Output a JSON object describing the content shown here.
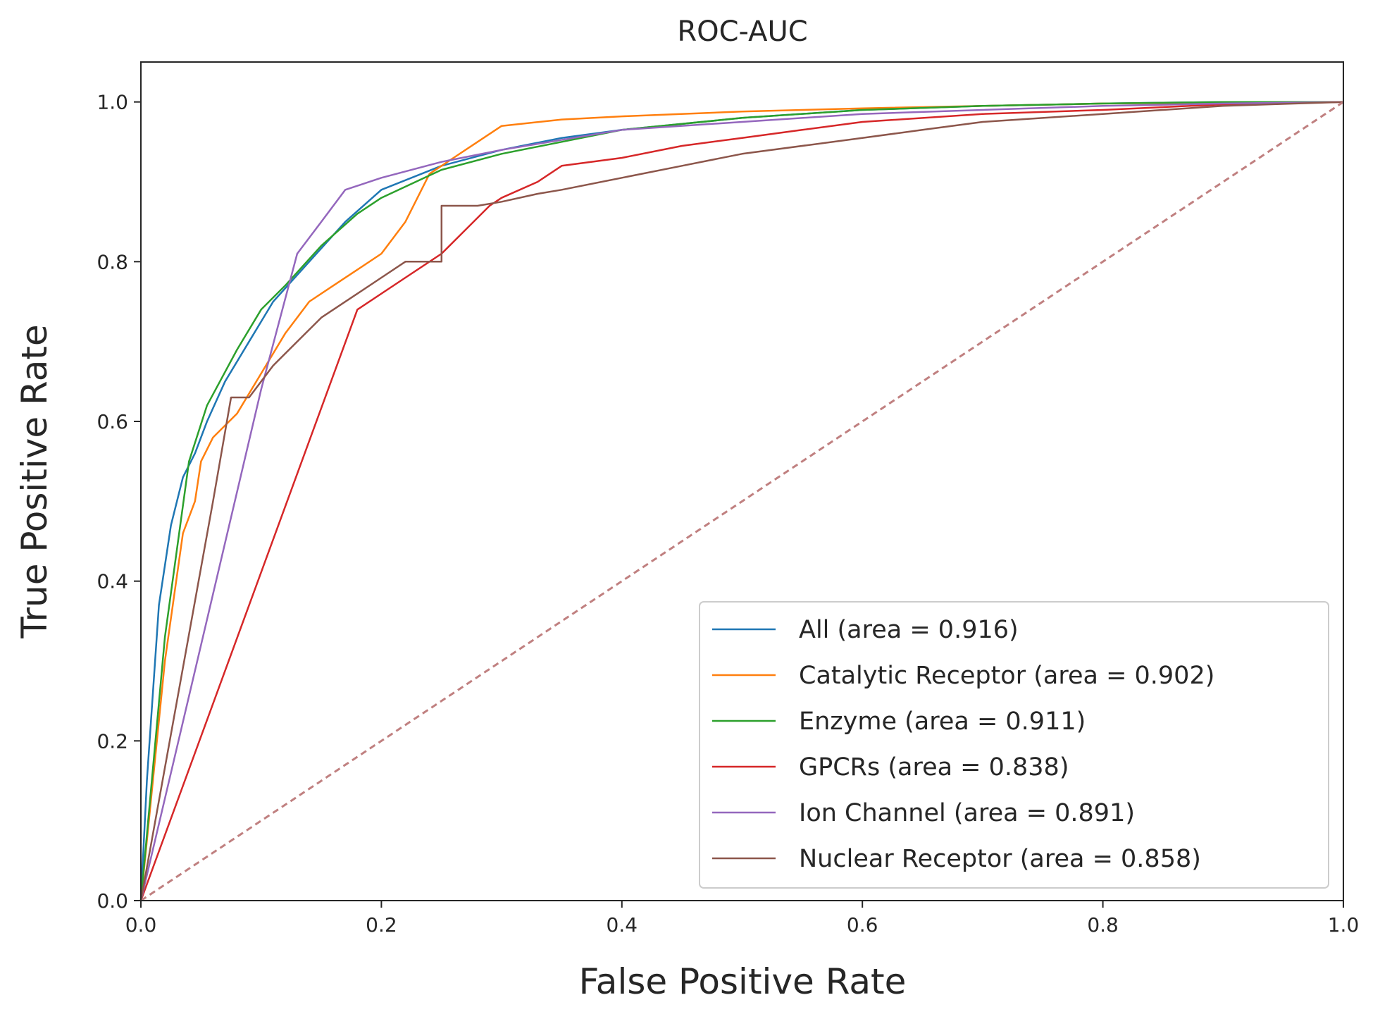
{
  "chart_data": {
    "type": "line",
    "title": "ROC-AUC",
    "xlabel": "False Positive Rate",
    "ylabel": "True Positive Rate",
    "xlim": [
      0.0,
      1.0
    ],
    "ylim": [
      0.0,
      1.05
    ],
    "xticks": [
      0.0,
      0.2,
      0.4,
      0.6,
      0.8,
      1.0
    ],
    "yticks": [
      0.0,
      0.2,
      0.4,
      0.6,
      0.8,
      1.0
    ],
    "xtick_labels": [
      "0.0",
      "0.2",
      "0.4",
      "0.6",
      "0.8",
      "1.0"
    ],
    "ytick_labels": [
      "0.0",
      "0.2",
      "0.4",
      "0.6",
      "0.8",
      "1.0"
    ],
    "grid": false,
    "legend_position": "lower-right",
    "series": [
      {
        "name": "All (area = 0.916)",
        "color": "#1f77b4",
        "x": [
          0.0,
          0.005,
          0.015,
          0.025,
          0.035,
          0.045,
          0.055,
          0.07,
          0.09,
          0.11,
          0.14,
          0.17,
          0.2,
          0.25,
          0.3,
          0.35,
          0.4,
          0.5,
          0.6,
          0.7,
          0.8,
          0.9,
          1.0
        ],
        "y": [
          0.0,
          0.15,
          0.37,
          0.47,
          0.53,
          0.56,
          0.6,
          0.65,
          0.7,
          0.75,
          0.8,
          0.85,
          0.89,
          0.92,
          0.94,
          0.955,
          0.965,
          0.98,
          0.99,
          0.995,
          0.998,
          1.0,
          1.0
        ]
      },
      {
        "name": "Catalytic Receptor (area = 0.902)",
        "color": "#ff7f0e",
        "x": [
          0.0,
          0.02,
          0.035,
          0.045,
          0.05,
          0.06,
          0.08,
          0.1,
          0.12,
          0.14,
          0.16,
          0.18,
          0.2,
          0.22,
          0.24,
          0.26,
          0.28,
          0.3,
          0.35,
          0.4,
          0.5,
          0.6,
          0.8,
          1.0
        ],
        "y": [
          0.0,
          0.3,
          0.46,
          0.5,
          0.55,
          0.58,
          0.61,
          0.66,
          0.71,
          0.75,
          0.77,
          0.79,
          0.81,
          0.85,
          0.91,
          0.93,
          0.95,
          0.97,
          0.978,
          0.982,
          0.988,
          0.992,
          0.998,
          1.0
        ]
      },
      {
        "name": "Enzyme (area = 0.911)",
        "color": "#2ca02c",
        "x": [
          0.0,
          0.02,
          0.04,
          0.055,
          0.08,
          0.1,
          0.12,
          0.15,
          0.18,
          0.2,
          0.25,
          0.3,
          0.35,
          0.4,
          0.5,
          0.6,
          0.7,
          0.8,
          0.9,
          1.0
        ],
        "y": [
          0.0,
          0.33,
          0.55,
          0.62,
          0.69,
          0.74,
          0.77,
          0.82,
          0.86,
          0.88,
          0.915,
          0.935,
          0.95,
          0.965,
          0.98,
          0.99,
          0.995,
          0.998,
          1.0,
          1.0
        ]
      },
      {
        "name": "GPCRs (area = 0.838)",
        "color": "#d62728",
        "x": [
          0.0,
          0.18,
          0.22,
          0.25,
          0.27,
          0.29,
          0.3,
          0.33,
          0.35,
          0.4,
          0.45,
          0.5,
          0.55,
          0.6,
          0.7,
          0.8,
          0.9,
          1.0
        ],
        "y": [
          0.0,
          0.74,
          0.78,
          0.81,
          0.84,
          0.87,
          0.88,
          0.9,
          0.92,
          0.93,
          0.945,
          0.955,
          0.965,
          0.975,
          0.985,
          0.99,
          0.997,
          1.0
        ]
      },
      {
        "name": "Ion Channel (area = 0.891)",
        "color": "#9467bd",
        "x": [
          0.0,
          0.1,
          0.13,
          0.15,
          0.17,
          0.2,
          0.25,
          0.3,
          0.4,
          0.5,
          0.6,
          0.7,
          0.8,
          0.9,
          1.0
        ],
        "y": [
          0.0,
          0.64,
          0.81,
          0.85,
          0.89,
          0.905,
          0.925,
          0.94,
          0.965,
          0.975,
          0.985,
          0.99,
          0.995,
          0.998,
          1.0
        ]
      },
      {
        "name": "Nuclear Receptor (area = 0.858)",
        "color": "#8c564b",
        "x": [
          0.0,
          0.06,
          0.075,
          0.09,
          0.11,
          0.13,
          0.15,
          0.18,
          0.2,
          0.22,
          0.25,
          0.25,
          0.28,
          0.3,
          0.33,
          0.35,
          0.4,
          0.45,
          0.5,
          0.6,
          0.65,
          0.7,
          0.8,
          0.9,
          1.0
        ],
        "y": [
          0.0,
          0.5,
          0.63,
          0.63,
          0.67,
          0.7,
          0.73,
          0.76,
          0.78,
          0.8,
          0.8,
          0.87,
          0.87,
          0.875,
          0.885,
          0.89,
          0.905,
          0.92,
          0.935,
          0.955,
          0.965,
          0.975,
          0.985,
          0.995,
          1.0
        ]
      },
      {
        "name": "",
        "color": "#c08080",
        "dashed": true,
        "x": [
          0.0,
          1.0
        ],
        "y": [
          0.0,
          1.0
        ]
      }
    ]
  }
}
